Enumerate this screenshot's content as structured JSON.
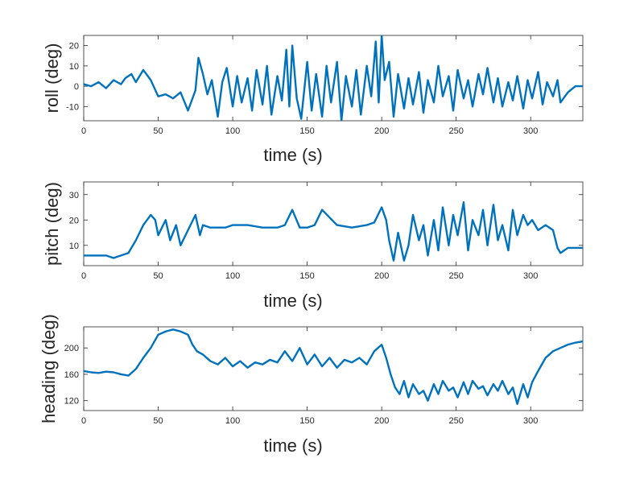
{
  "chart_data": [
    {
      "type": "line",
      "xlabel": "time (s)",
      "ylabel": "roll (deg)",
      "xlim": [
        0,
        335
      ],
      "ylim": [
        -17,
        25
      ],
      "xticks": [
        0,
        50,
        100,
        150,
        200,
        250,
        300
      ],
      "yticks": [
        -10,
        0,
        10,
        20
      ],
      "color": "#0072BD",
      "series": [
        {
          "x": [
            0,
            5,
            10,
            15,
            20,
            25,
            28,
            32,
            35,
            40,
            45,
            50,
            55,
            60,
            65,
            70,
            75,
            77,
            80,
            83,
            86,
            90,
            93,
            96,
            100,
            103,
            106,
            110,
            113,
            116,
            120,
            123,
            126,
            130,
            133,
            136,
            138,
            140,
            143,
            146,
            150,
            153,
            156,
            160,
            163,
            166,
            170,
            173,
            176,
            180,
            183,
            186,
            190,
            193,
            196,
            198,
            200,
            202,
            205,
            208,
            211,
            215,
            218,
            221,
            225,
            228,
            231,
            235,
            238,
            241,
            245,
            248,
            251,
            255,
            258,
            261,
            265,
            268,
            271,
            275,
            278,
            281,
            285,
            288,
            291,
            295,
            298,
            301,
            305,
            308,
            311,
            315,
            318,
            320,
            325,
            330,
            335
          ],
          "y": [
            1,
            0,
            2,
            -1,
            3,
            1,
            4,
            6,
            2,
            8,
            3,
            -5,
            -4,
            -6,
            -3,
            -12,
            -2,
            14,
            6,
            -4,
            3,
            -15,
            2,
            9,
            -10,
            5,
            -8,
            4,
            -12,
            8,
            -9,
            10,
            -14,
            5,
            -7,
            18,
            -10,
            20,
            -6,
            -16,
            12,
            -12,
            6,
            -15,
            10,
            -8,
            12,
            -17,
            5,
            -10,
            8,
            -14,
            10,
            -5,
            22,
            -8,
            25,
            3,
            12,
            -15,
            6,
            -11,
            4,
            -9,
            7,
            -13,
            3,
            -8,
            10,
            -5,
            5,
            -12,
            8,
            -6,
            3,
            -10,
            6,
            -4,
            9,
            -8,
            4,
            -10,
            2,
            -7,
            5,
            -11,
            3,
            -6,
            7,
            -9,
            2,
            -5,
            3,
            -8,
            -3,
            0,
            0
          ]
        }
      ]
    },
    {
      "type": "line",
      "xlabel": "time (s)",
      "ylabel": "pitch (deg)",
      "xlim": [
        0,
        335
      ],
      "ylim": [
        2,
        35
      ],
      "xticks": [
        0,
        50,
        100,
        150,
        200,
        250,
        300
      ],
      "yticks": [
        10,
        20,
        30
      ],
      "color": "#0072BD",
      "series": [
        {
          "x": [
            0,
            5,
            10,
            15,
            20,
            25,
            30,
            35,
            40,
            45,
            48,
            50,
            55,
            58,
            62,
            65,
            70,
            75,
            78,
            80,
            85,
            90,
            95,
            100,
            110,
            120,
            130,
            135,
            140,
            145,
            150,
            155,
            160,
            170,
            180,
            190,
            195,
            200,
            203,
            205,
            208,
            211,
            215,
            218,
            221,
            225,
            228,
            231,
            235,
            238,
            241,
            245,
            248,
            251,
            255,
            258,
            261,
            265,
            268,
            271,
            275,
            278,
            281,
            285,
            288,
            291,
            295,
            298,
            301,
            305,
            310,
            315,
            318,
            320,
            325,
            330,
            335
          ],
          "y": [
            6,
            6,
            6,
            6,
            5,
            6,
            7,
            12,
            18,
            22,
            20,
            14,
            20,
            12,
            18,
            10,
            16,
            22,
            14,
            18,
            17,
            17,
            17,
            18,
            18,
            17,
            17,
            18,
            24,
            17,
            17,
            18,
            24,
            18,
            17,
            18,
            19,
            25,
            20,
            12,
            4,
            15,
            4,
            10,
            22,
            12,
            18,
            6,
            20,
            8,
            25,
            10,
            22,
            14,
            27,
            8,
            20,
            14,
            24,
            10,
            26,
            12,
            18,
            8,
            24,
            14,
            22,
            18,
            20,
            16,
            18,
            16,
            9,
            7,
            9,
            9,
            9
          ]
        }
      ]
    },
    {
      "type": "line",
      "xlabel": "time (s)",
      "ylabel": "heading (deg)",
      "xlim": [
        0,
        335
      ],
      "ylim": [
        105,
        232
      ],
      "xticks": [
        0,
        50,
        100,
        150,
        200,
        250,
        300
      ],
      "yticks": [
        120,
        160,
        200
      ],
      "color": "#0072BD",
      "series": [
        {
          "x": [
            0,
            5,
            10,
            15,
            20,
            25,
            30,
            35,
            40,
            45,
            50,
            55,
            60,
            65,
            70,
            73,
            76,
            80,
            85,
            90,
            95,
            100,
            105,
            110,
            115,
            120,
            125,
            130,
            135,
            140,
            145,
            150,
            155,
            160,
            165,
            170,
            175,
            180,
            185,
            190,
            195,
            200,
            203,
            206,
            209,
            212,
            215,
            218,
            221,
            225,
            228,
            231,
            235,
            238,
            241,
            245,
            248,
            251,
            255,
            258,
            261,
            265,
            268,
            271,
            275,
            278,
            281,
            285,
            288,
            291,
            295,
            298,
            301,
            305,
            310,
            315,
            320,
            325,
            330,
            335
          ],
          "y": [
            165,
            163,
            162,
            164,
            163,
            160,
            158,
            168,
            185,
            200,
            220,
            225,
            228,
            225,
            220,
            205,
            195,
            190,
            180,
            175,
            185,
            172,
            180,
            170,
            178,
            175,
            182,
            178,
            195,
            180,
            200,
            175,
            190,
            172,
            185,
            170,
            182,
            178,
            185,
            175,
            195,
            205,
            185,
            160,
            140,
            130,
            150,
            125,
            145,
            130,
            135,
            120,
            145,
            130,
            150,
            135,
            140,
            125,
            148,
            130,
            150,
            138,
            142,
            128,
            145,
            135,
            150,
            130,
            140,
            115,
            145,
            125,
            148,
            165,
            185,
            195,
            200,
            205,
            208,
            210
          ]
        }
      ]
    }
  ]
}
